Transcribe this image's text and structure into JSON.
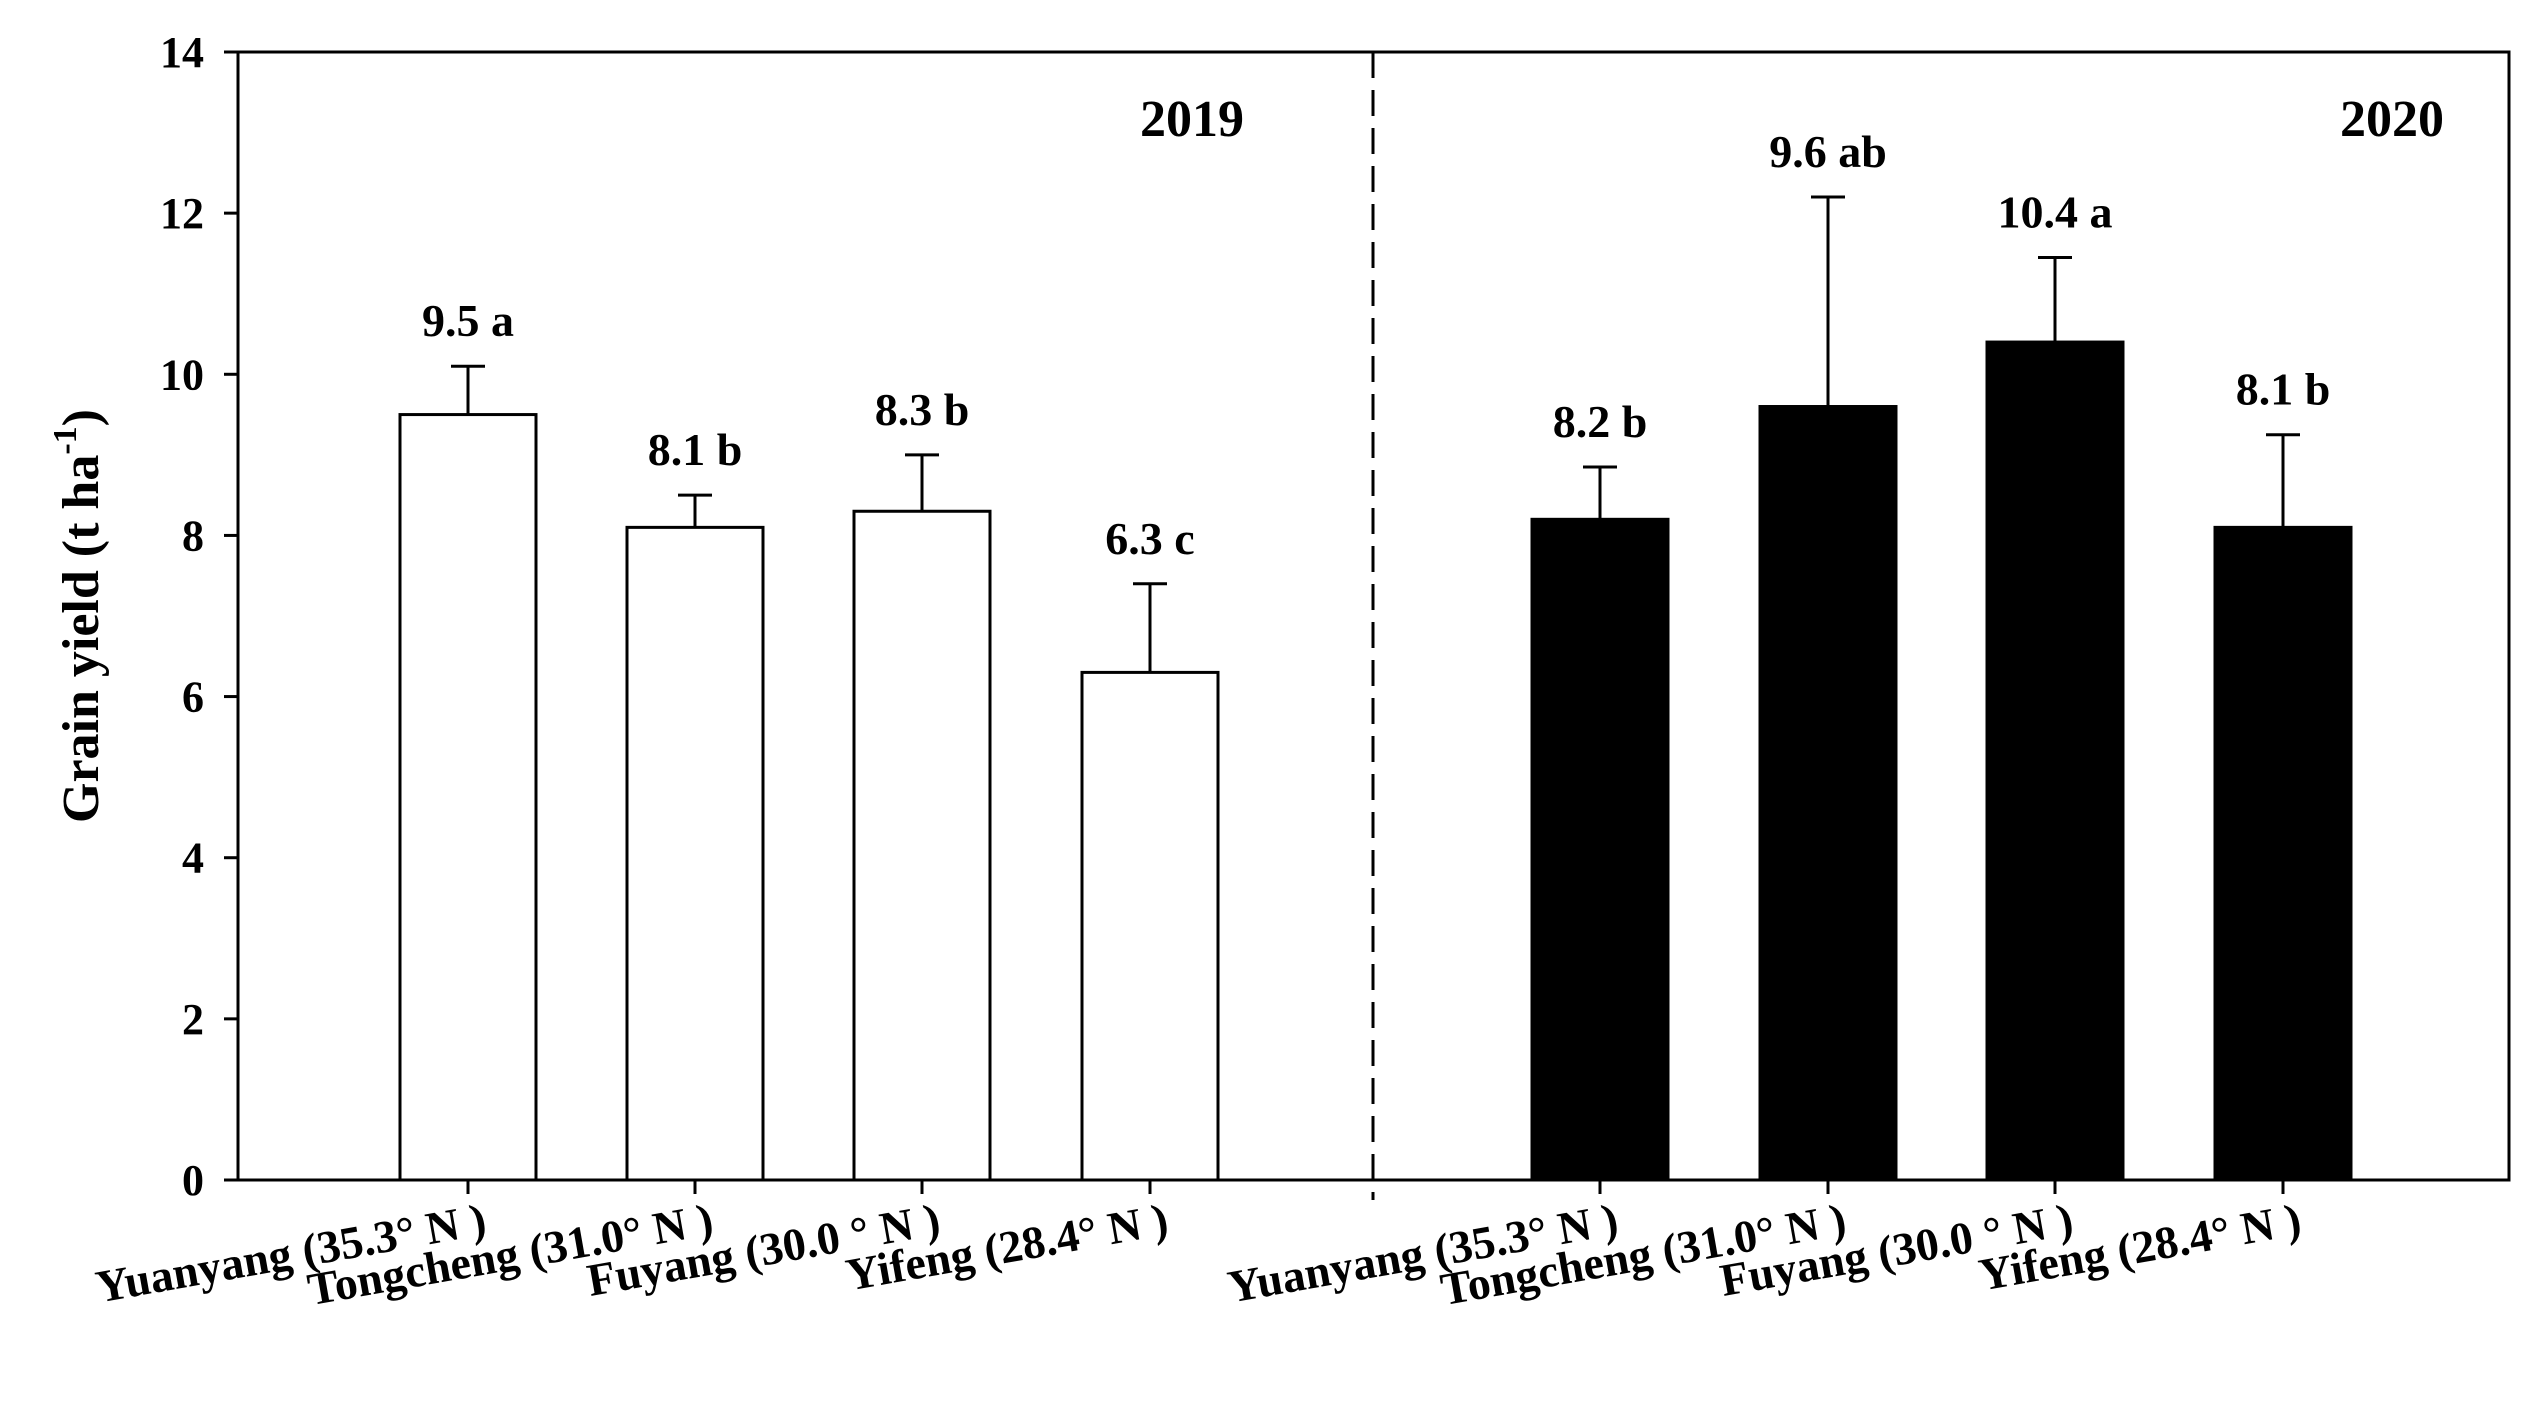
{
  "chart_data": {
    "type": "bar",
    "ylabel": "Grain yield (t ha",
    "ylabel_sup": "-1",
    "ylabel_end": ")",
    "ylim": [
      0,
      14
    ],
    "yticks": [
      "0",
      "2",
      "4",
      "6",
      "8",
      "10",
      "12",
      "14"
    ],
    "panels": [
      {
        "name": "2019",
        "label": "2019",
        "fill": "#ffffff",
        "categories": [
          "Yuanyang (35.3° N )",
          "Tongcheng (31.0° N )",
          "Fuyang (30.0 ° N )",
          "Yifeng (28.4° N )"
        ],
        "values": [
          9.5,
          8.1,
          8.3,
          6.3
        ],
        "errors": [
          0.6,
          0.4,
          0.7,
          1.1
        ],
        "labels": [
          "9.5 a",
          "8.1 b",
          "8.3 b",
          "6.3 c"
        ]
      },
      {
        "name": "2020",
        "label": "2020",
        "fill": "#000000",
        "categories": [
          "Yuanyang (35.3° N )",
          "Tongcheng (31.0° N )",
          "Fuyang (30.0 ° N )",
          "Yifeng (28.4° N )"
        ],
        "values": [
          8.2,
          9.6,
          10.4,
          8.1
        ],
        "errors": [
          0.65,
          2.6,
          1.05,
          1.15
        ],
        "labels": [
          "8.2 b",
          "9.6 ab",
          "10.4 a",
          "8.1 b"
        ]
      }
    ]
  }
}
